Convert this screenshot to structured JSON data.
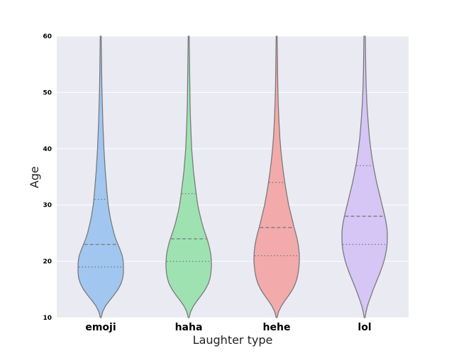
{
  "chart_data": {
    "type": "violin",
    "xlabel": "Laughter type",
    "ylabel": "Age",
    "ylim": [
      10,
      60
    ],
    "yticks": [
      10,
      20,
      30,
      40,
      50,
      60
    ],
    "grid": true,
    "inner": "quartile",
    "colors": {
      "background": "#eaeaf2",
      "grid": "#ffffff",
      "outline": "#7a7a7a"
    },
    "categories": [
      "emoji",
      "haha",
      "hehe",
      "lol"
    ],
    "series": [
      {
        "category": "emoji",
        "color": "#a1c6f0",
        "quartiles": {
          "q1": 19,
          "median": 23,
          "q3": 31
        },
        "min": 10,
        "max": 60,
        "profile": [
          [
            10,
            0.02
          ],
          [
            11,
            0.08
          ],
          [
            12,
            0.2
          ],
          [
            13,
            0.38
          ],
          [
            14,
            0.58
          ],
          [
            15,
            0.76
          ],
          [
            16,
            0.89
          ],
          [
            17,
            0.97
          ],
          [
            18,
            1.0
          ],
          [
            19,
            1.0
          ],
          [
            20,
            0.99
          ],
          [
            21,
            0.95
          ],
          [
            22,
            0.86
          ],
          [
            23,
            0.76
          ],
          [
            24,
            0.66
          ],
          [
            25,
            0.58
          ],
          [
            26,
            0.52
          ],
          [
            27,
            0.46
          ],
          [
            28,
            0.41
          ],
          [
            29,
            0.37
          ],
          [
            30,
            0.33
          ],
          [
            32,
            0.28
          ],
          [
            34,
            0.24
          ],
          [
            36,
            0.2
          ],
          [
            38,
            0.17
          ],
          [
            40,
            0.14
          ],
          [
            42,
            0.12
          ],
          [
            45,
            0.09
          ],
          [
            48,
            0.07
          ],
          [
            51,
            0.05
          ],
          [
            54,
            0.04
          ],
          [
            57,
            0.03
          ],
          [
            60,
            0.02
          ]
        ]
      },
      {
        "category": "haha",
        "color": "#9fe2b2",
        "quartiles": {
          "q1": 20,
          "median": 24,
          "q3": 32
        },
        "min": 10,
        "max": 60,
        "profile": [
          [
            10,
            0.02
          ],
          [
            11,
            0.08
          ],
          [
            12,
            0.2
          ],
          [
            13,
            0.37
          ],
          [
            14,
            0.56
          ],
          [
            15,
            0.73
          ],
          [
            16,
            0.86
          ],
          [
            17,
            0.94
          ],
          [
            18,
            0.98
          ],
          [
            19,
            1.0
          ],
          [
            20,
            1.0
          ],
          [
            21,
            0.98
          ],
          [
            22,
            0.94
          ],
          [
            23,
            0.88
          ],
          [
            24,
            0.81
          ],
          [
            25,
            0.72
          ],
          [
            26,
            0.64
          ],
          [
            27,
            0.57
          ],
          [
            28,
            0.51
          ],
          [
            29,
            0.45
          ],
          [
            30,
            0.4
          ],
          [
            32,
            0.33
          ],
          [
            34,
            0.27
          ],
          [
            36,
            0.21
          ],
          [
            38,
            0.17
          ],
          [
            40,
            0.13
          ],
          [
            42,
            0.11
          ],
          [
            45,
            0.08
          ],
          [
            48,
            0.06
          ],
          [
            51,
            0.05
          ],
          [
            54,
            0.04
          ],
          [
            57,
            0.03
          ],
          [
            60,
            0.02
          ]
        ]
      },
      {
        "category": "hehe",
        "color": "#f3aaaa",
        "quartiles": {
          "q1": 21,
          "median": 26,
          "q3": 34
        },
        "min": 10,
        "max": 60,
        "profile": [
          [
            10,
            0.02
          ],
          [
            11,
            0.08
          ],
          [
            12,
            0.2
          ],
          [
            13,
            0.36
          ],
          [
            14,
            0.54
          ],
          [
            15,
            0.7
          ],
          [
            16,
            0.82
          ],
          [
            17,
            0.9
          ],
          [
            18,
            0.95
          ],
          [
            19,
            0.98
          ],
          [
            20,
            1.0
          ],
          [
            21,
            1.0
          ],
          [
            22,
            0.98
          ],
          [
            23,
            0.95
          ],
          [
            24,
            0.9
          ],
          [
            25,
            0.84
          ],
          [
            26,
            0.77
          ],
          [
            27,
            0.71
          ],
          [
            28,
            0.65
          ],
          [
            29,
            0.59
          ],
          [
            30,
            0.53
          ],
          [
            32,
            0.44
          ],
          [
            34,
            0.36
          ],
          [
            36,
            0.29
          ],
          [
            38,
            0.23
          ],
          [
            40,
            0.18
          ],
          [
            42,
            0.14
          ],
          [
            45,
            0.1
          ],
          [
            48,
            0.07
          ],
          [
            51,
            0.05
          ],
          [
            54,
            0.04
          ],
          [
            57,
            0.03
          ],
          [
            60,
            0.02
          ]
        ]
      },
      {
        "category": "lol",
        "color": "#d5c6f5",
        "quartiles": {
          "q1": 23,
          "median": 28,
          "q3": 37
        },
        "min": 10,
        "max": 60,
        "profile": [
          [
            10,
            0.02
          ],
          [
            11,
            0.06
          ],
          [
            12,
            0.12
          ],
          [
            13,
            0.2
          ],
          [
            14,
            0.29
          ],
          [
            15,
            0.38
          ],
          [
            16,
            0.48
          ],
          [
            17,
            0.58
          ],
          [
            18,
            0.68
          ],
          [
            19,
            0.77
          ],
          [
            20,
            0.85
          ],
          [
            21,
            0.91
          ],
          [
            22,
            0.96
          ],
          [
            23,
            0.99
          ],
          [
            24,
            1.0
          ],
          [
            25,
            1.0
          ],
          [
            26,
            0.98
          ],
          [
            27,
            0.94
          ],
          [
            28,
            0.89
          ],
          [
            29,
            0.83
          ],
          [
            30,
            0.77
          ],
          [
            32,
            0.65
          ],
          [
            34,
            0.53
          ],
          [
            36,
            0.43
          ],
          [
            38,
            0.34
          ],
          [
            40,
            0.27
          ],
          [
            42,
            0.21
          ],
          [
            45,
            0.15
          ],
          [
            48,
            0.1
          ],
          [
            51,
            0.07
          ],
          [
            54,
            0.05
          ],
          [
            57,
            0.04
          ],
          [
            60,
            0.03
          ]
        ]
      }
    ]
  }
}
